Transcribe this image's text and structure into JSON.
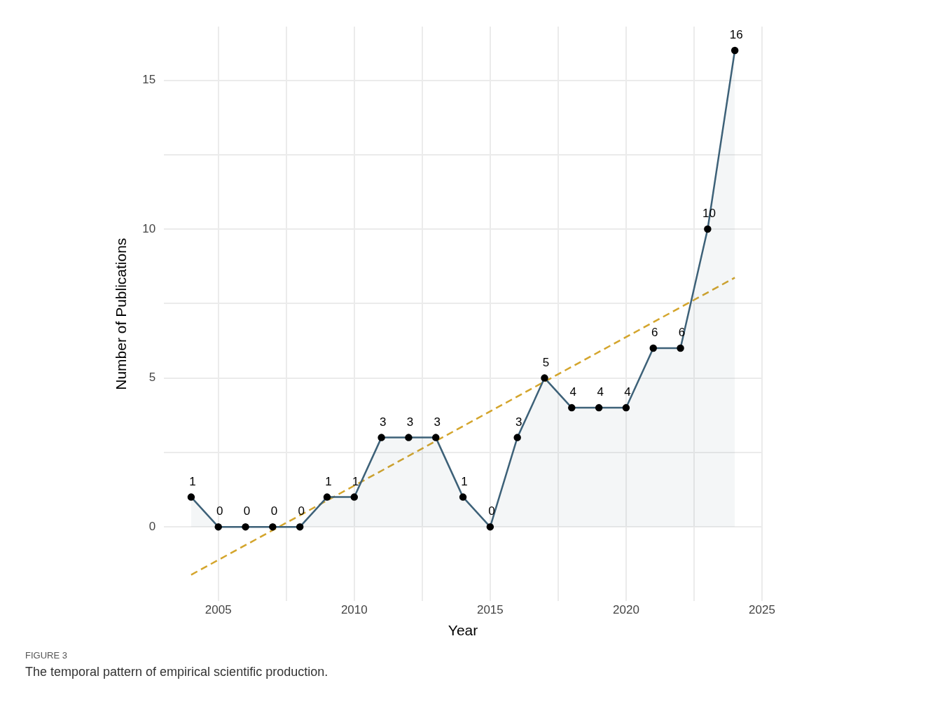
{
  "chart_data": {
    "type": "line",
    "xlabel": "Year",
    "ylabel": "Number of Publications",
    "x": [
      2004,
      2005,
      2006,
      2007,
      2008,
      2009,
      2010,
      2011,
      2012,
      2013,
      2014,
      2015,
      2016,
      2017,
      2018,
      2019,
      2020,
      2021,
      2022,
      2023,
      2024
    ],
    "series": [
      {
        "type": "area",
        "color": "#3d6178",
        "marker": "circle",
        "values": [
          1,
          0,
          0,
          0,
          0,
          1,
          1,
          3,
          3,
          3,
          1,
          0,
          3,
          5,
          4,
          4,
          4,
          6,
          6,
          10,
          16
        ],
        "value_labels": [
          "1",
          "0",
          "0",
          "0",
          "0",
          "1",
          "1",
          "3",
          "3",
          "3",
          "1",
          "0",
          "3",
          "5",
          "4",
          "4",
          "4",
          "6",
          "6",
          "10",
          "16"
        ]
      },
      {
        "color": "#d4a52c",
        "line_style": "dashed",
        "x": [
          2004,
          2024
        ],
        "values": [
          -1.61,
          8.37
        ]
      }
    ],
    "grid": true,
    "xlim": [
      2003,
      2025
    ],
    "xticks": [
      2005,
      {
        "value": 2007.5,
        "label": null
      },
      2010,
      {
        "value": 2012.5,
        "label": null
      },
      2015,
      {
        "value": 2017.5,
        "label": null
      },
      2020,
      {
        "value": 2022.5,
        "label": null
      },
      2025
    ],
    "ylim": [
      -2.5,
      16.8
    ],
    "yticks": [
      0,
      {
        "value": 2.5,
        "label": null
      },
      5,
      {
        "value": 7.5,
        "label": null
      },
      10,
      {
        "value": 12.5,
        "label": null
      },
      15
    ],
    "annotations": [
      "FIGURE 3",
      "The temporal pattern of empirical scientific production."
    ]
  }
}
